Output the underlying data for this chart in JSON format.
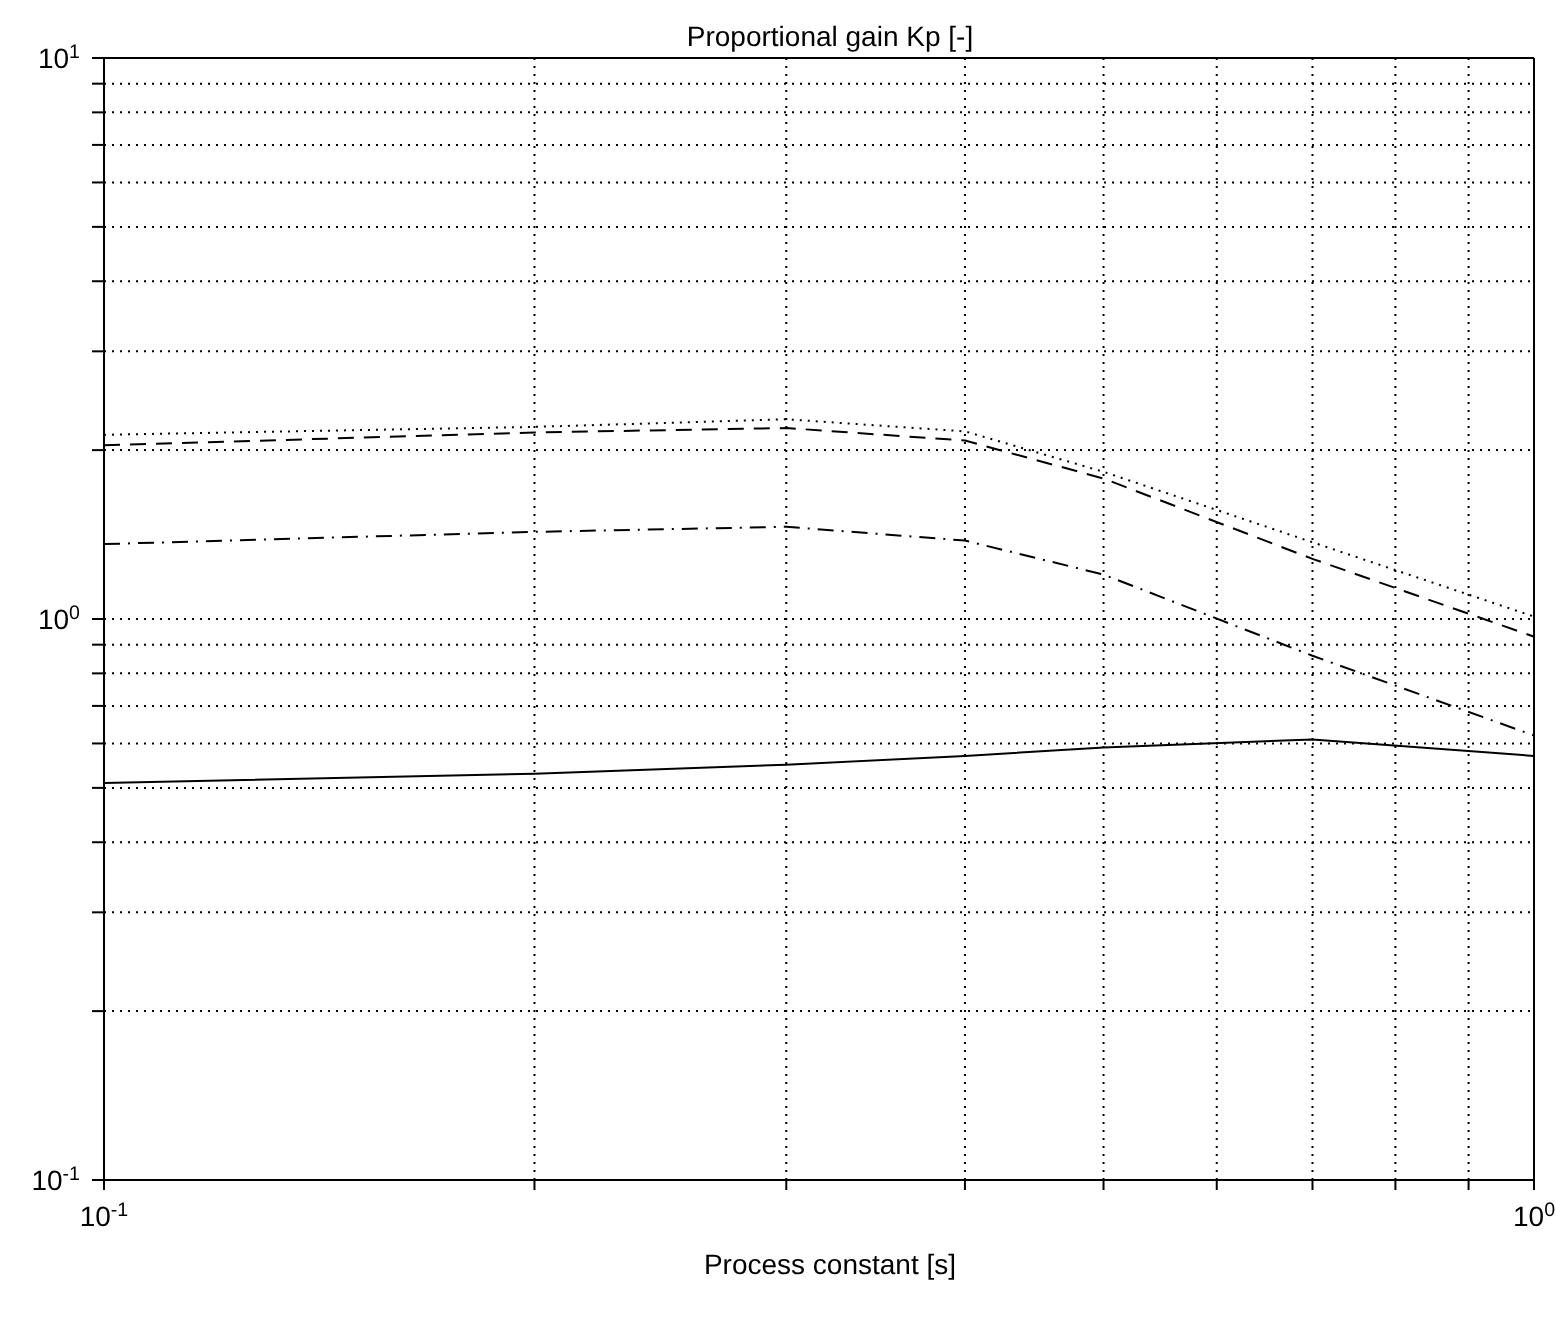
{
  "chart_data": {
    "type": "line",
    "title": "Proportional gain Kp [-]",
    "xlabel": "Process constant [s]",
    "log": "xy",
    "grid": true,
    "marker": "none",
    "x": [
      0.1,
      0.2,
      0.3,
      0.4,
      0.5,
      0.7,
      1.0
    ],
    "xlim": [
      0.1,
      1
    ],
    "ylim": [
      0.1,
      10
    ],
    "xticks": [
      {
        "value": 0.1,
        "label": "10$^{-1}$"
      },
      {
        "value": 0.2,
        "label": null
      },
      {
        "value": 0.3,
        "label": null
      },
      {
        "value": 0.4,
        "label": null
      },
      {
        "value": 0.5,
        "label": null
      },
      {
        "value": 0.6,
        "label": null
      },
      {
        "value": 0.7,
        "label": null
      },
      {
        "value": 0.8,
        "label": null
      },
      {
        "value": 0.9,
        "label": null
      },
      {
        "value": 1,
        "label": "10$^{0}$"
      }
    ],
    "yticks": [
      {
        "value": 0.1,
        "label": "10$^{-1}$"
      },
      {
        "value": 0.2,
        "label": null
      },
      {
        "value": 0.3,
        "label": null
      },
      {
        "value": 0.4,
        "label": null
      },
      {
        "value": 0.5,
        "label": null
      },
      {
        "value": 0.6,
        "label": null
      },
      {
        "value": 0.7,
        "label": null
      },
      {
        "value": 0.8,
        "label": null
      },
      {
        "value": 0.9,
        "label": null
      },
      {
        "value": 1,
        "label": "10$^{0}$"
      },
      {
        "value": 2,
        "label": null
      },
      {
        "value": 3,
        "label": null
      },
      {
        "value": 4,
        "label": null
      },
      {
        "value": 5,
        "label": null
      },
      {
        "value": 6,
        "label": null
      },
      {
        "value": 7,
        "label": null
      },
      {
        "value": 8,
        "label": null
      },
      {
        "value": 9,
        "label": null
      },
      {
        "value": 10,
        "label": "10$^{1}$"
      }
    ],
    "series": [
      {
        "color": "#000000",
        "line_style": "solid",
        "values": [
          0.51,
          0.53,
          0.55,
          0.57,
          0.59,
          0.61,
          0.57
        ]
      },
      {
        "color": "#000000",
        "line_style": "dashed",
        "values": [
          2.04,
          2.15,
          2.19,
          2.08,
          1.78,
          1.28,
          0.93
        ]
      },
      {
        "color": "#000000",
        "line_style": "dotted",
        "values": [
          2.13,
          2.2,
          2.27,
          2.16,
          1.83,
          1.37,
          1.01
        ]
      },
      {
        "color": "#000000",
        "line_style": "dashdot",
        "values": [
          1.36,
          1.43,
          1.46,
          1.38,
          1.2,
          0.86,
          0.62
        ]
      }
    ]
  }
}
